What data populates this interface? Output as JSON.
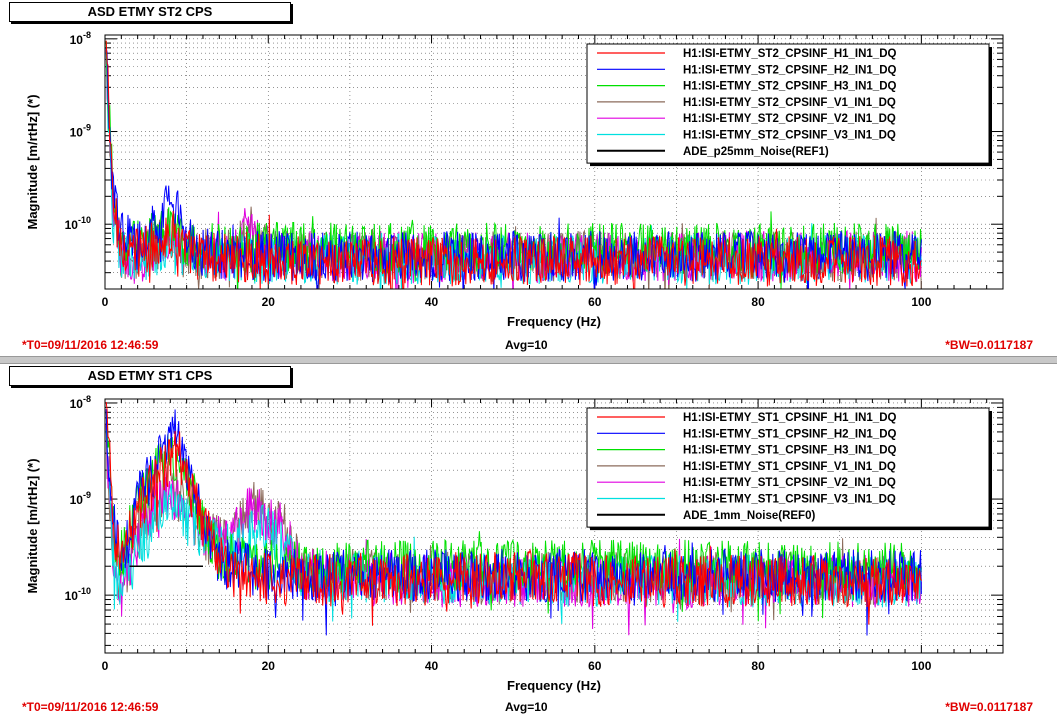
{
  "panels": [
    {
      "title": "ASD ETMY ST2 CPS",
      "t0": "*T0=09/11/2016 12:46:59",
      "avg": "Avg=10",
      "bw": "*BW=0.0117187",
      "legend": [
        {
          "name": "H1:ISI-ETMY_ST2_CPSINF_H1_IN1_DQ",
          "color": "#ff0000"
        },
        {
          "name": "H1:ISI-ETMY_ST2_CPSINF_H2_IN1_DQ",
          "color": "#0000ff"
        },
        {
          "name": "H1:ISI-ETMY_ST2_CPSINF_H3_IN1_DQ",
          "color": "#00e000"
        },
        {
          "name": "H1:ISI-ETMY_ST2_CPSINF_V1_IN1_DQ",
          "color": "#8b6b5b"
        },
        {
          "name": "H1:ISI-ETMY_ST2_CPSINF_V2_IN1_DQ",
          "color": "#e000e0"
        },
        {
          "name": "H1:ISI-ETMY_ST2_CPSINF_V3_IN1_DQ",
          "color": "#00e0e0"
        },
        {
          "name": "ADE_p25mm_Noise(REF1)",
          "color": "#000000"
        }
      ]
    },
    {
      "title": "ASD ETMY ST1 CPS",
      "t0": "*T0=09/11/2016 12:46:59",
      "avg": "Avg=10",
      "bw": "*BW=0.0117187",
      "legend": [
        {
          "name": "H1:ISI-ETMY_ST1_CPSINF_H1_IN1_DQ",
          "color": "#ff0000"
        },
        {
          "name": "H1:ISI-ETMY_ST1_CPSINF_H2_IN1_DQ",
          "color": "#0000ff"
        },
        {
          "name": "H1:ISI-ETMY_ST1_CPSINF_H3_IN1_DQ",
          "color": "#00e000"
        },
        {
          "name": "H1:ISI-ETMY_ST1_CPSINF_V1_IN1_DQ",
          "color": "#8b6b5b"
        },
        {
          "name": "H1:ISI-ETMY_ST1_CPSINF_V2_IN1_DQ",
          "color": "#e000e0"
        },
        {
          "name": "H1:ISI-ETMY_ST1_CPSINF_V3_IN1_DQ",
          "color": "#00e0e0"
        },
        {
          "name": "ADE_1mm_Noise(REF0)",
          "color": "#000000"
        }
      ]
    }
  ],
  "chart_data": [
    {
      "type": "line",
      "title": "ASD ETMY ST2 CPS",
      "xlabel": "Frequency (Hz)",
      "ylabel": "Magnitude [m/rtHz] (*)",
      "xlim": [
        0,
        110
      ],
      "ylim": [
        2e-11,
        1.1e-08
      ],
      "yscale": "log",
      "grid": true,
      "legend_position": "top-right",
      "x_ticks": [
        "0",
        "20",
        "40",
        "60",
        "80",
        "100"
      ],
      "x_tick_values": [
        0,
        20,
        40,
        60,
        80,
        100
      ],
      "y_ticks": [
        "10^-8",
        "10^-9",
        "10^-10"
      ],
      "y_tick_values": [
        1e-08,
        1e-09,
        1e-10
      ],
      "series": [
        {
          "name": "H1:ISI-ETMY_ST2_CPSINF_H1_IN1_DQ",
          "x": [
            0.1,
            0.5,
            1,
            2,
            4,
            6,
            8,
            9,
            10,
            12,
            15,
            18,
            20,
            25,
            40,
            60,
            80,
            100
          ],
          "y": [
            1e-08,
            2e-09,
            1.5e-10,
            6e-11,
            5e-11,
            6e-11,
            8e-11,
            7e-11,
            5e-11,
            4.5e-11,
            4.2e-11,
            4.5e-11,
            4.2e-11,
            4e-11,
            4e-11,
            4e-11,
            4e-11,
            4e-11
          ]
        },
        {
          "name": "H1:ISI-ETMY_ST2_CPSINF_H2_IN1_DQ",
          "x": [
            0.1,
            0.5,
            1,
            2,
            4,
            6,
            7,
            8,
            9,
            10,
            12,
            15,
            20,
            40,
            60,
            80,
            100
          ],
          "y": [
            8e-09,
            1.5e-09,
            1.8e-10,
            8e-11,
            6e-11,
            9e-11,
            1.5e-10,
            1.8e-10,
            1.2e-10,
            7e-11,
            5e-11,
            4.5e-11,
            4.5e-11,
            4.5e-11,
            4.5e-11,
            4.5e-11,
            4.5e-11
          ]
        },
        {
          "name": "H1:ISI-ETMY_ST2_CPSINF_H3_IN1_DQ",
          "x": [
            0.1,
            0.5,
            1,
            2,
            4,
            8,
            10,
            15,
            20,
            25,
            40,
            60,
            80,
            100
          ],
          "y": [
            9e-09,
            1.8e-09,
            1.6e-10,
            7e-11,
            6e-11,
            9e-11,
            6e-11,
            5.5e-11,
            5.8e-11,
            5.5e-11,
            5.5e-11,
            5.5e-11,
            5.5e-11,
            5.5e-11
          ]
        },
        {
          "name": "H1:ISI-ETMY_ST2_CPSINF_V1_IN1_DQ",
          "x": [
            0.1,
            1,
            2,
            4,
            8,
            10,
            15,
            18,
            20,
            25,
            60,
            100
          ],
          "y": [
            7e-09,
            1.2e-10,
            5e-11,
            4e-11,
            8e-11,
            5e-11,
            4.5e-11,
            9e-11,
            5e-11,
            4.5e-11,
            4.5e-11,
            4.5e-11
          ]
        },
        {
          "name": "H1:ISI-ETMY_ST2_CPSINF_V2_IN1_DQ",
          "x": [
            0.1,
            1,
            2,
            4,
            8,
            10,
            15,
            18,
            20,
            25,
            60,
            100
          ],
          "y": [
            7e-09,
            1.1e-10,
            5e-11,
            4e-11,
            7e-11,
            5e-11,
            4.5e-11,
            1e-10,
            5e-11,
            4.5e-11,
            4.5e-11,
            4.5e-11
          ]
        },
        {
          "name": "H1:ISI-ETMY_ST2_CPSINF_V3_IN1_DQ",
          "x": [
            0.1,
            1,
            2,
            4,
            8,
            10,
            20,
            60,
            100
          ],
          "y": [
            6e-09,
            1e-10,
            4.5e-11,
            4e-11,
            6e-11,
            4.5e-11,
            4.2e-11,
            4.2e-11,
            4.2e-11
          ]
        }
      ]
    },
    {
      "type": "line",
      "title": "ASD ETMY ST1 CPS",
      "xlabel": "Frequency (Hz)",
      "ylabel": "Magnitude [m/rtHz] (*)",
      "xlim": [
        0,
        110
      ],
      "ylim": [
        2.5e-11,
        1.1e-08
      ],
      "yscale": "log",
      "grid": true,
      "legend_position": "top-right",
      "x_ticks": [
        "0",
        "20",
        "40",
        "60",
        "80",
        "100"
      ],
      "x_tick_values": [
        0,
        20,
        40,
        60,
        80,
        100
      ],
      "y_ticks": [
        "10^-8",
        "10^-9",
        "10^-10"
      ],
      "y_tick_values": [
        1e-08,
        1e-09,
        1e-10
      ],
      "series": [
        {
          "name": "H1:ISI-ETMY_ST1_CPSINF_H1_IN1_DQ",
          "x": [
            0.1,
            0.5,
            1,
            2,
            4,
            6,
            8,
            9,
            10,
            12,
            14,
            16,
            20,
            30,
            55,
            60,
            80,
            100
          ],
          "y": [
            1e-08,
            3e-09,
            5e-10,
            2.5e-10,
            8e-10,
            1.5e-09,
            2.5e-09,
            3e-09,
            1.5e-09,
            6e-10,
            2.5e-10,
            1.6e-10,
            1.5e-10,
            1.4e-10,
            1.6e-10,
            1.4e-10,
            1.4e-10,
            1.4e-10
          ]
        },
        {
          "name": "H1:ISI-ETMY_ST1_CPSINF_H2_IN1_DQ",
          "x": [
            0.1,
            1,
            2,
            4,
            6,
            8,
            9,
            10,
            12,
            14,
            20,
            40,
            60,
            80,
            100
          ],
          "y": [
            8e-09,
            6e-10,
            2e-10,
            1e-09,
            2e-09,
            4e-09,
            5e-09,
            2e-09,
            7e-10,
            2.2e-10,
            1.6e-10,
            1.6e-10,
            1.6e-10,
            1.6e-10,
            1.6e-10
          ]
        },
        {
          "name": "H1:ISI-ETMY_ST1_CPSINF_H3_IN1_DQ",
          "x": [
            0.1,
            1,
            2,
            4,
            6,
            8,
            10,
            12,
            14,
            20,
            40,
            60,
            80,
            100
          ],
          "y": [
            7e-09,
            5e-10,
            2.5e-10,
            9e-10,
            1.8e-09,
            3e-09,
            1.8e-09,
            6e-10,
            2.5e-10,
            2e-10,
            2e-10,
            2e-10,
            2e-10,
            2e-10
          ]
        },
        {
          "name": "H1:ISI-ETMY_ST1_CPSINF_V1_IN1_DQ",
          "x": [
            0.1,
            1,
            2,
            4,
            6,
            8,
            10,
            12,
            15,
            17,
            18,
            20,
            22,
            24,
            40,
            60,
            100
          ],
          "y": [
            5e-09,
            3e-10,
            1.2e-10,
            4e-10,
            1e-09,
            1.5e-09,
            8e-10,
            4e-10,
            3.5e-10,
            6e-10,
            9e-10,
            6e-10,
            5e-10,
            1.8e-10,
            1.5e-10,
            1.5e-10,
            1.5e-10
          ]
        },
        {
          "name": "H1:ISI-ETMY_ST1_CPSINF_V2_IN1_DQ",
          "x": [
            0.1,
            1,
            2,
            4,
            6,
            8,
            10,
            12,
            15,
            18,
            20,
            22,
            24,
            40,
            60,
            100
          ],
          "y": [
            5e-09,
            3e-10,
            1.1e-10,
            4e-10,
            9e-10,
            1.3e-09,
            7e-10,
            4e-10,
            3.5e-10,
            8e-10,
            6e-10,
            5e-10,
            1.7e-10,
            1.4e-10,
            1.4e-10,
            1.4e-10
          ]
        },
        {
          "name": "H1:ISI-ETMY_ST1_CPSINF_V3_IN1_DQ",
          "x": [
            0.1,
            1,
            2,
            4,
            8,
            10,
            15,
            20,
            24,
            60,
            100
          ],
          "y": [
            4e-09,
            2.5e-10,
            1e-10,
            3e-10,
            1e-09,
            6e-10,
            3e-10,
            5e-10,
            1.6e-10,
            1.4e-10,
            1.4e-10
          ]
        },
        {
          "name": "ADE_1mm_Noise(REF0)",
          "x": [
            3,
            12
          ],
          "y": [
            2e-10,
            2e-10
          ]
        }
      ]
    }
  ]
}
